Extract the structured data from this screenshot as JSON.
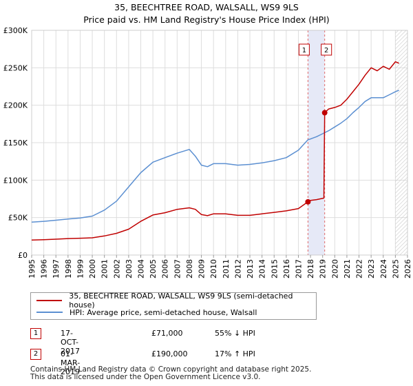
{
  "title_line1": "35, BEECHTREE ROAD, WALSALL, WS9 9LS",
  "title_line2": "Price paid vs. HM Land Registry's House Price Index (HPI)",
  "chart_data": {
    "type": "line",
    "title": "35, BEECHTREE ROAD, WALSALL, WS9 9LS — Price paid vs. HM Land Registry's House Price Index (HPI)",
    "xlim": [
      1995,
      2026
    ],
    "ylim": [
      0,
      300000
    ],
    "y_ticks": [
      0,
      50000,
      100000,
      150000,
      200000,
      250000,
      300000
    ],
    "y_tick_labels": [
      "£0",
      "£50K",
      "£100K",
      "£150K",
      "£200K",
      "£250K",
      "£300K"
    ],
    "x_ticks": [
      1995,
      1996,
      1997,
      1998,
      1999,
      2000,
      2001,
      2002,
      2003,
      2004,
      2005,
      2006,
      2007,
      2008,
      2009,
      2010,
      2011,
      2012,
      2013,
      2014,
      2015,
      2016,
      2017,
      2018,
      2019,
      2020,
      2021,
      2022,
      2023,
      2024,
      2025,
      2026
    ],
    "grid": true,
    "sale_markers": [
      {
        "label": "1",
        "x": 2017.79,
        "y": 71000,
        "color": "#c00000"
      },
      {
        "label": "2",
        "x": 2019.17,
        "y": 190000,
        "color": "#c00000"
      }
    ],
    "highlight_band": [
      2017.79,
      2019.17
    ],
    "future_hatch_start": 2025.0,
    "series": [
      {
        "name": "35, BEECHTREE ROAD, WALSALL, WS9 9LS (semi-detached house)",
        "color": "#c00000",
        "x": [
          1995,
          1996,
          1997,
          1998,
          1999,
          2000,
          2001,
          2002,
          2003,
          2004,
          2005,
          2006,
          2007,
          2008,
          2008.5,
          2009,
          2009.5,
          2010,
          2011,
          2012,
          2013,
          2014,
          2015,
          2016,
          2017,
          2017.79,
          2018,
          2018.5,
          2019.1,
          2019.17,
          2019.5,
          2020,
          2020.5,
          2021,
          2021.5,
          2022,
          2022.5,
          2023,
          2023.5,
          2024,
          2024.5,
          2025,
          2025.3
        ],
        "values": [
          20000,
          20500,
          21200,
          22000,
          22500,
          23000,
          25500,
          29000,
          34500,
          45000,
          53500,
          56500,
          61000,
          63000,
          61000,
          54000,
          52500,
          55000,
          55000,
          53000,
          53000,
          55000,
          57000,
          59000,
          62000,
          71000,
          73000,
          74000,
          76000,
          190000,
          195000,
          197000,
          200000,
          208000,
          218000,
          228000,
          240000,
          250000,
          246000,
          252000,
          248000,
          258000,
          256000
        ]
      },
      {
        "name": "HPI: Average price, semi-detached house, Walsall",
        "color": "#5b8fd1",
        "x": [
          1995,
          1996,
          1997,
          1998,
          1999,
          2000,
          2001,
          2002,
          2003,
          2004,
          2005,
          2006,
          2007,
          2008,
          2008.5,
          2009,
          2009.5,
          2010,
          2011,
          2012,
          2013,
          2014,
          2015,
          2016,
          2017,
          2017.79,
          2018,
          2018.5,
          2019,
          2019.5,
          2020,
          2020.5,
          2021,
          2021.5,
          2022,
          2022.5,
          2023,
          2023.5,
          2024,
          2024.5,
          2025,
          2025.3
        ],
        "values": [
          44000,
          45000,
          46500,
          48000,
          49500,
          52000,
          60000,
          72000,
          91000,
          110000,
          124000,
          130000,
          136000,
          141000,
          132000,
          120000,
          118000,
          122000,
          122000,
          120000,
          121000,
          123000,
          126000,
          130000,
          140000,
          154000,
          155000,
          158000,
          162000,
          166000,
          171000,
          176000,
          182000,
          190000,
          197000,
          205000,
          210000,
          210000,
          210000,
          214000,
          218000,
          220000
        ]
      }
    ]
  },
  "legend": {
    "items": [
      {
        "label": "35, BEECHTREE ROAD, WALSALL, WS9 9LS (semi-detached house)",
        "color": "#c00000"
      },
      {
        "label": "HPI: Average price, semi-detached house, Walsall",
        "color": "#5b8fd1"
      }
    ]
  },
  "transactions": [
    {
      "num": "1",
      "date": "17-OCT-2017",
      "price": "£71,000",
      "hpi": "55% ↓ HPI"
    },
    {
      "num": "2",
      "date": "01-MAR-2019",
      "price": "£190,000",
      "hpi": "17% ↑ HPI"
    }
  ],
  "footer": {
    "line1": "Contains HM Land Registry data © Crown copyright and database right 2025.",
    "line2": "This data is licensed under the Open Government Licence v3.0."
  }
}
